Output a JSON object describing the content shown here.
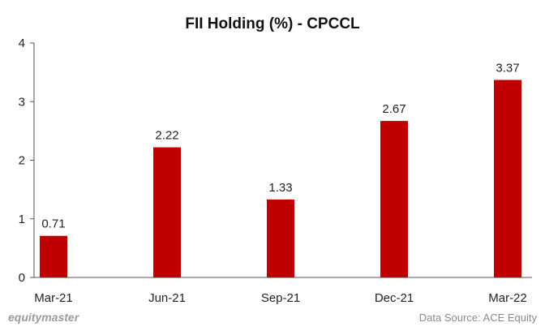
{
  "chart_data": {
    "type": "bar",
    "title": "FII Holding (%) - CPCCL",
    "categories": [
      "Mar-21",
      "Jun-21",
      "Sep-21",
      "Dec-21",
      "Mar-22"
    ],
    "values": [
      0.71,
      2.22,
      1.33,
      2.67,
      3.37
    ],
    "value_labels": [
      "0.71",
      "2.22",
      "1.33",
      "2.67",
      "3.37"
    ],
    "xlabel": "",
    "ylabel": "",
    "ylim": [
      0,
      4
    ],
    "yticks": [
      "0",
      "1",
      "2",
      "3",
      "4"
    ],
    "grid": false,
    "legend": "none",
    "bar_color": "#c00000"
  },
  "footer": {
    "brand": "equitymaster",
    "source": "Data Source: ACE Equity"
  }
}
